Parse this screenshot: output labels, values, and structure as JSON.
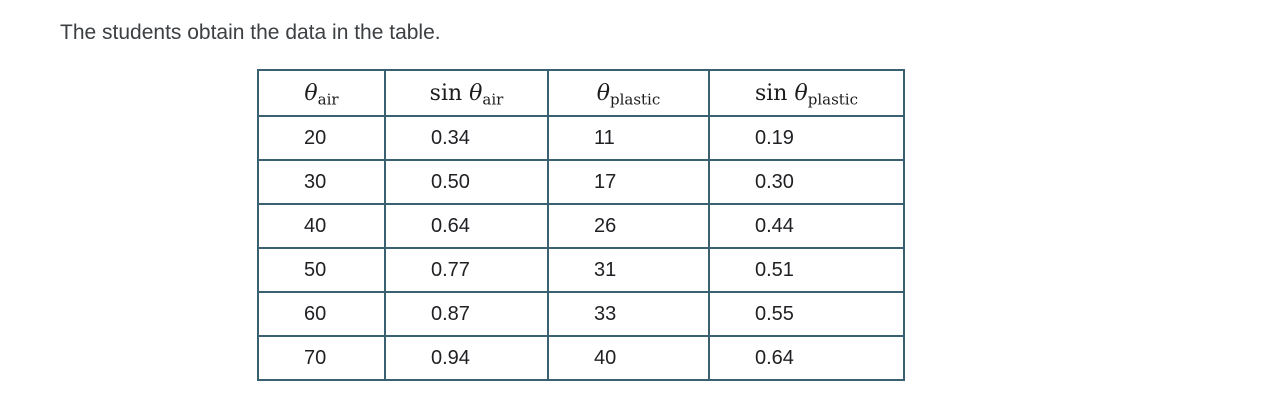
{
  "intro": {
    "text": "The students obtain the data in the table."
  },
  "table": {
    "headers": [
      {
        "prefix": "",
        "symbol": "θ",
        "subscript": "air"
      },
      {
        "prefix": "sin",
        "symbol": "θ",
        "subscript": "air"
      },
      {
        "prefix": "",
        "symbol": "θ",
        "subscript": "plastic"
      },
      {
        "prefix": "sin",
        "symbol": "θ",
        "subscript": "plastic"
      }
    ],
    "rows": [
      [
        "20",
        "0.34",
        "11",
        "0.19"
      ],
      [
        "30",
        "0.50",
        "17",
        "0.30"
      ],
      [
        "40",
        "0.64",
        "26",
        "0.44"
      ],
      [
        "50",
        "0.77",
        "31",
        "0.51"
      ],
      [
        "60",
        "0.87",
        "33",
        "0.55"
      ],
      [
        "70",
        "0.94",
        "40",
        "0.64"
      ]
    ]
  },
  "chart_data": {
    "type": "table",
    "columns": [
      "theta_air (deg)",
      "sin theta_air",
      "theta_plastic (deg)",
      "sin theta_plastic"
    ],
    "rows": [
      [
        20,
        0.34,
        11,
        0.19
      ],
      [
        30,
        0.5,
        17,
        0.3
      ],
      [
        40,
        0.64,
        26,
        0.44
      ],
      [
        50,
        0.77,
        31,
        0.51
      ],
      [
        60,
        0.87,
        33,
        0.55
      ],
      [
        70,
        0.94,
        40,
        0.64
      ]
    ]
  },
  "colors": {
    "table_border": "#39616f",
    "intro_text": "#3c4043",
    "cell_text": "#202124",
    "background": "#ffffff"
  }
}
